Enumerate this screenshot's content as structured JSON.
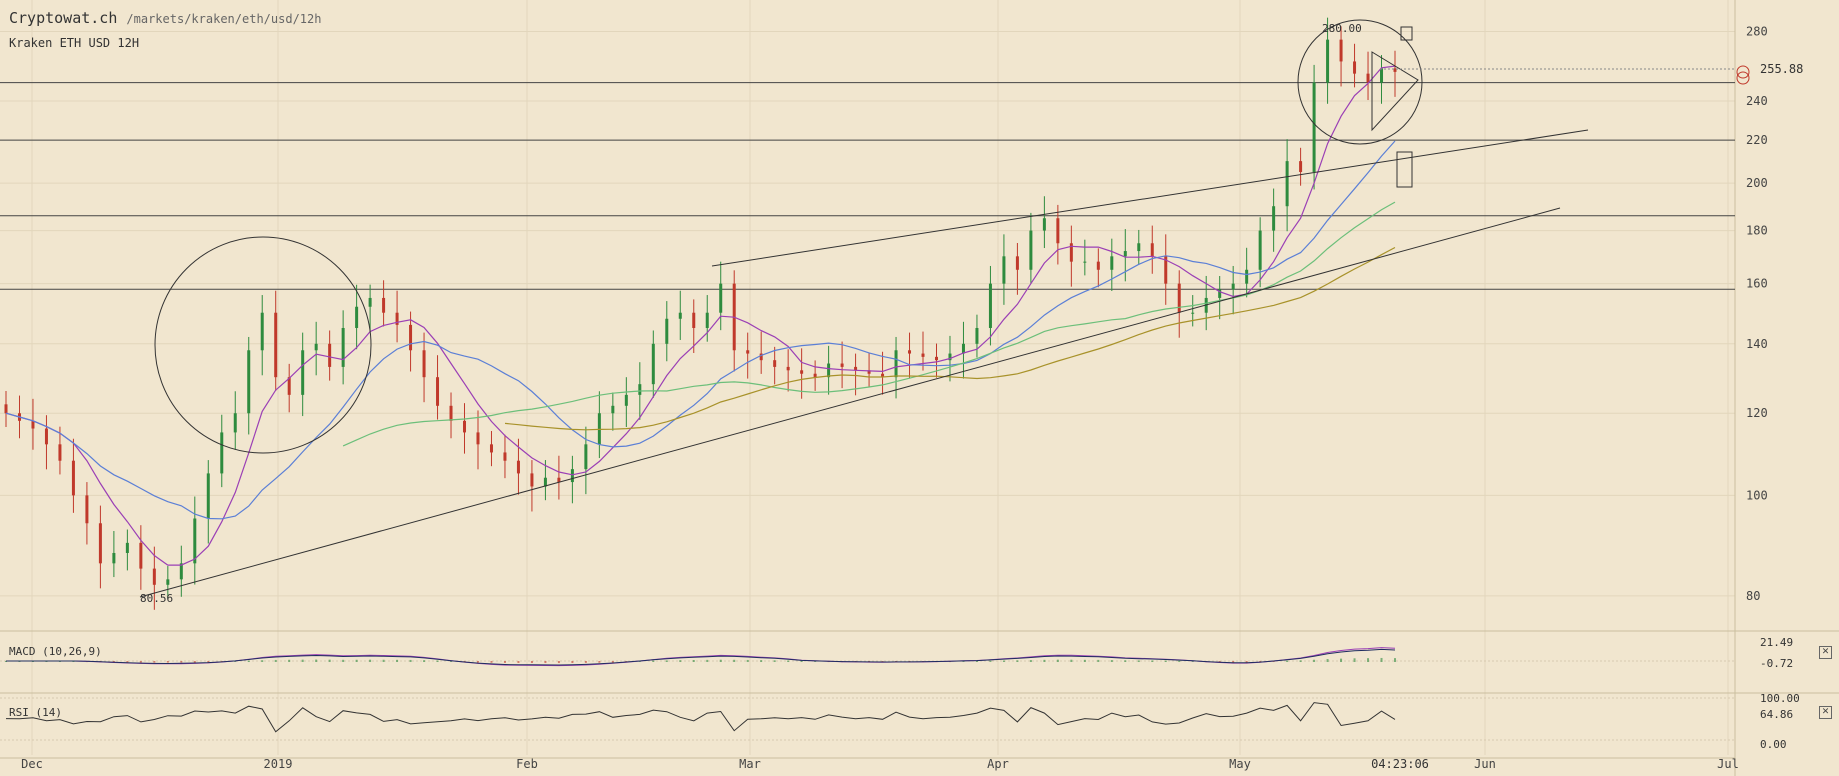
{
  "header": {
    "brand": "Cryptowat.ch",
    "path": "/markets/kraken/eth/usd/12h",
    "subtitle": "Kraken ETH USD 12H"
  },
  "indicators": {
    "macd": {
      "label": "MACD (10,26,9)",
      "value_1": "21.49",
      "value_2": "-0.72",
      "close_label": "✕"
    },
    "rsi": {
      "label": "RSI (14)",
      "tick_top": "100.00",
      "value": "64.86",
      "tick_bottom": "0.00",
      "close_label": "✕"
    }
  },
  "price_annotations": {
    "high_label": "280.00",
    "low_label": "80.56",
    "last_price": "255.88"
  },
  "time_readout": "04:23:06",
  "colors": {
    "background": "#f1e6cf",
    "up_candle": "#2e8b3e",
    "down_candle": "#c0392b",
    "ma_fast": "#9b3fb5",
    "ma_mid": "#5b7fd6",
    "ma_slow": "#6cbf7a",
    "ma_long": "#a8922a"
  },
  "chart_data": {
    "type": "candlestick",
    "y_scale": "log",
    "ylim": [
      75,
      295
    ],
    "y_ticks": [
      80,
      100,
      120,
      140,
      160,
      180,
      200,
      220,
      240,
      280
    ],
    "x_ticks": [
      "Dec",
      "2019",
      "Feb",
      "Mar",
      "Apr",
      "May",
      "Jun",
      "Jul"
    ],
    "horizontal_levels": [
      158,
      186,
      220,
      250
    ],
    "closes": [
      120,
      118,
      116,
      112,
      108,
      100,
      94,
      86,
      88,
      90,
      85,
      82,
      83,
      86,
      95,
      105,
      115,
      120,
      138,
      150,
      130,
      125,
      138,
      140,
      133,
      145,
      152,
      155,
      150,
      146,
      138,
      130,
      122,
      118,
      115,
      112,
      110,
      108,
      105,
      102,
      104,
      103,
      106,
      112,
      120,
      122,
      125,
      128,
      140,
      148,
      150,
      145,
      150,
      160,
      138,
      137,
      135,
      133,
      132,
      131,
      130,
      134,
      133,
      132,
      131,
      130,
      138,
      137,
      136,
      135,
      137,
      140,
      145,
      160,
      170,
      165,
      180,
      185,
      175,
      168,
      168,
      165,
      170,
      172,
      175,
      170,
      160,
      150,
      150,
      155,
      158,
      160,
      165,
      180,
      190,
      210,
      205,
      250,
      275,
      262,
      255,
      250,
      258,
      256
    ]
  }
}
